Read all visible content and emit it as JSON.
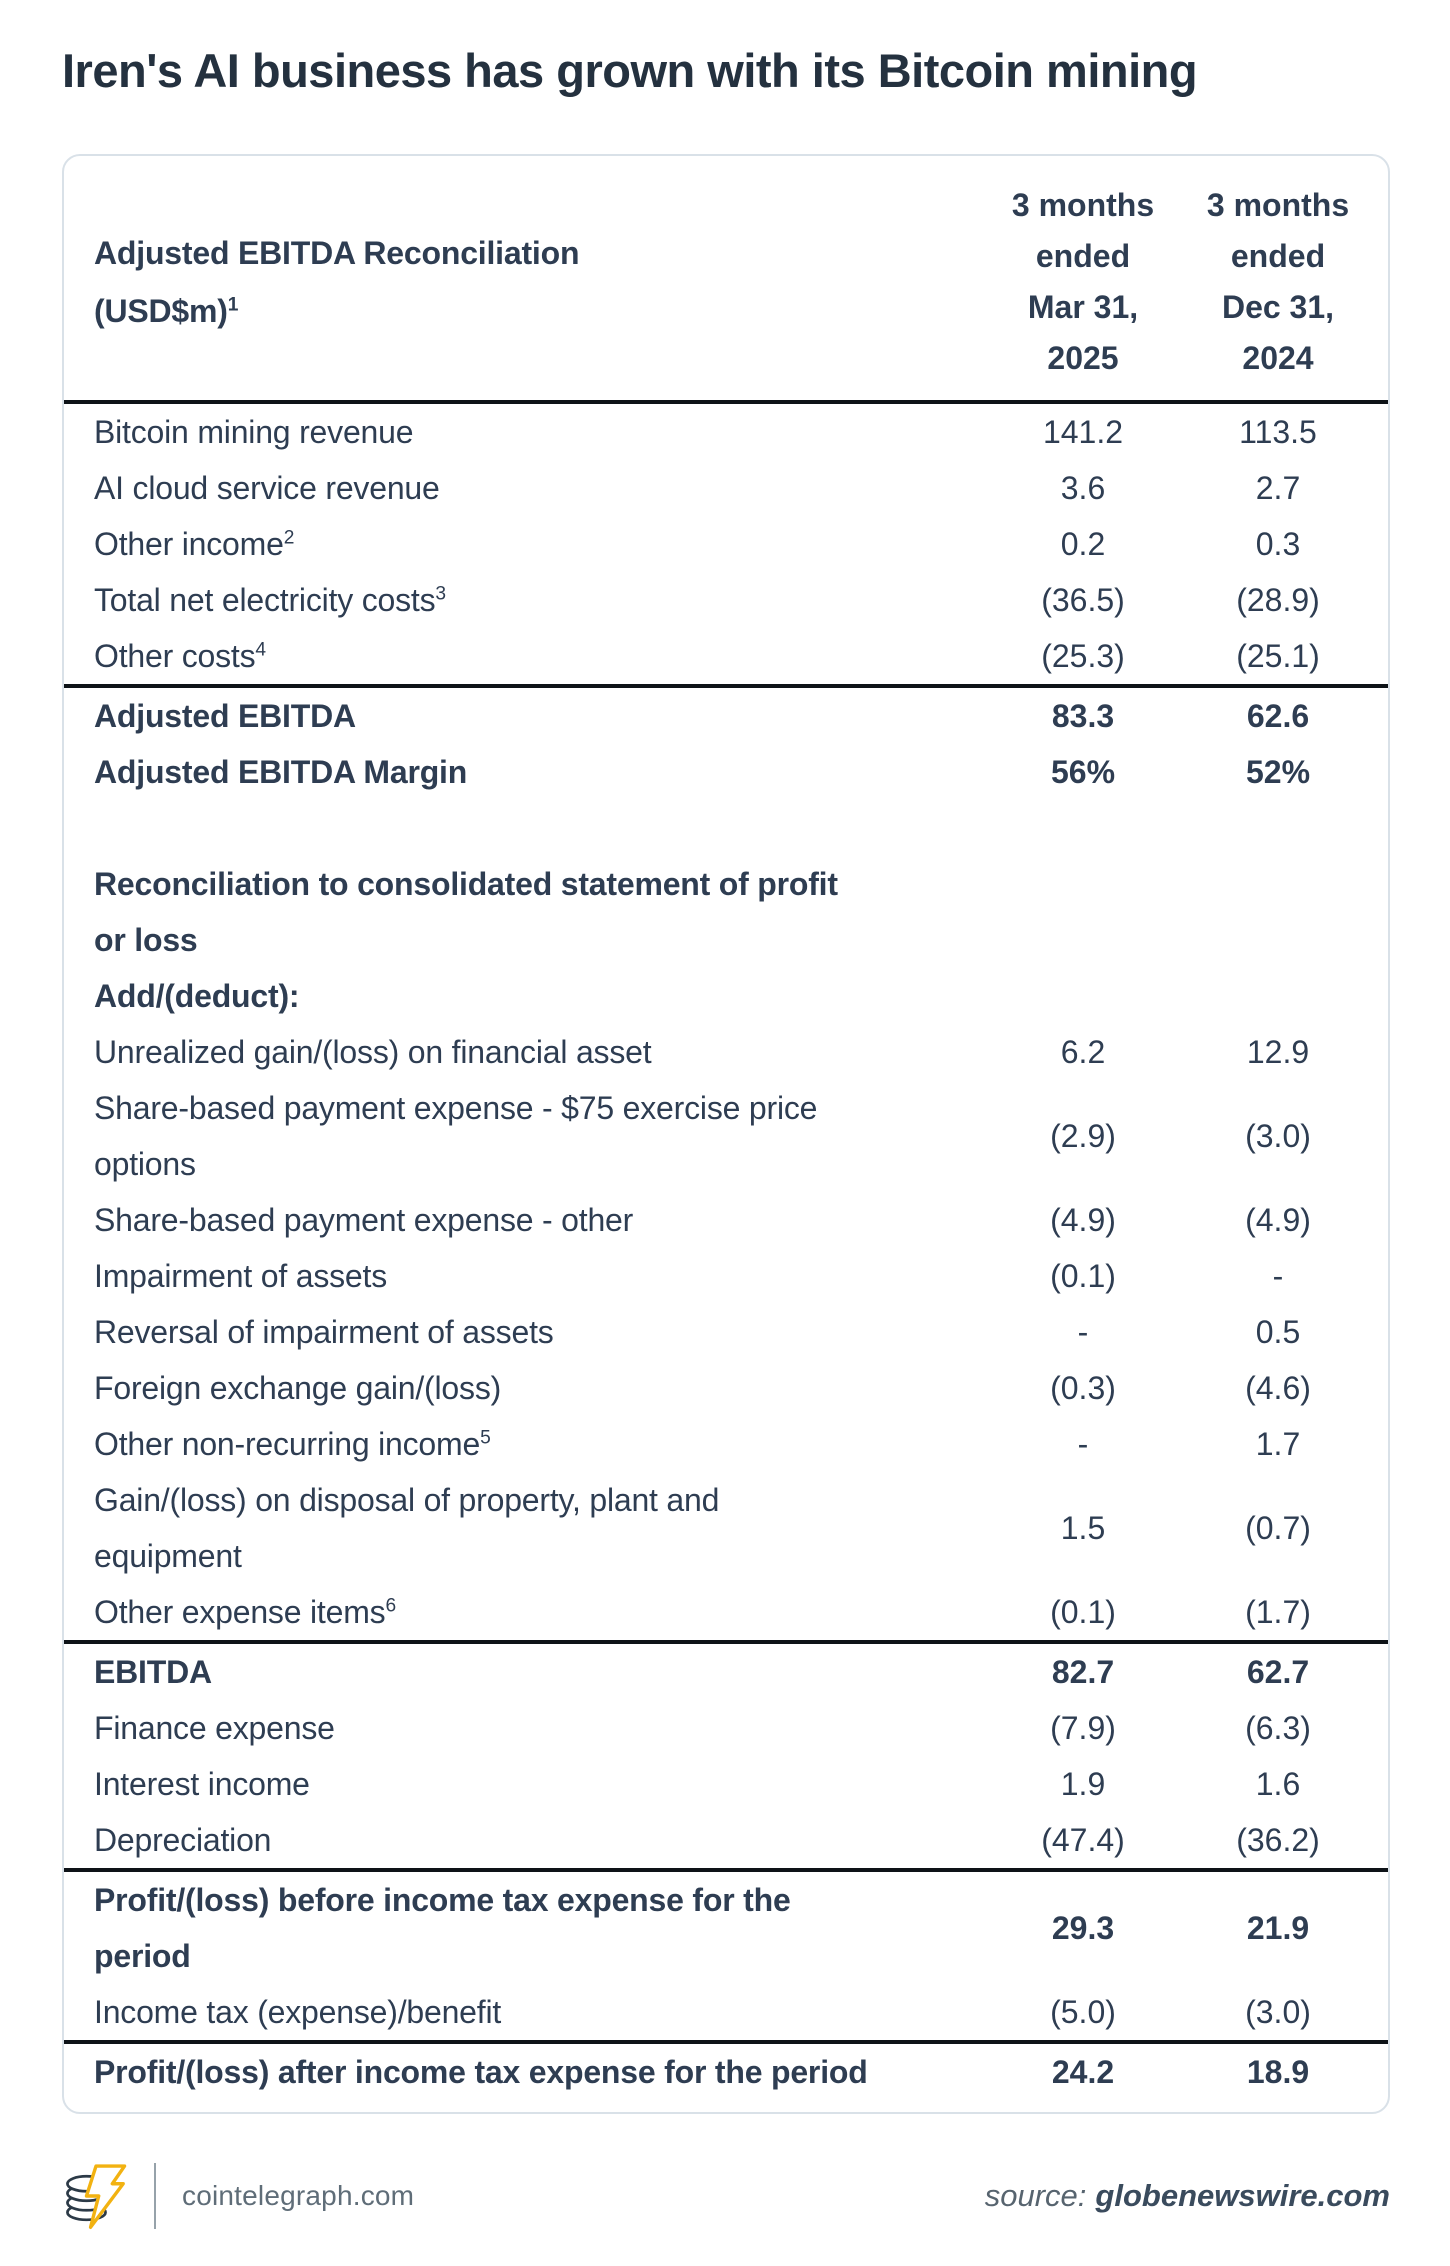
{
  "title": "Iren's AI business has grown with its Bitcoin mining",
  "table": {
    "header": {
      "label": "Adjusted EBITDA Reconciliation\n(USD$m)",
      "label_sup": "1",
      "col_mar": "3 months\nended\nMar 31,\n2025",
      "col_dec": "3 months\nended\nDec 31,\n2024"
    },
    "rows": [
      {
        "label": "Bitcoin mining revenue",
        "mar": "141.2",
        "dec": "113.5"
      },
      {
        "label": "AI cloud service revenue",
        "mar": "3.6",
        "dec": "2.7"
      },
      {
        "label": "Other income",
        "sup": "2",
        "mar": "0.2",
        "dec": "0.3"
      },
      {
        "label": "Total net electricity costs",
        "sup": "3",
        "mar": "(36.5)",
        "dec": "(28.9)"
      },
      {
        "label": "Other costs",
        "sup": "4",
        "mar": "(25.3)",
        "dec": "(25.1)"
      },
      {
        "label": "Adjusted EBITDA",
        "bold": true,
        "rule_above": true,
        "mar": "83.3",
        "dec": "62.6"
      },
      {
        "label": "Adjusted EBITDA Margin",
        "bold": true,
        "mar": "56%",
        "dec": "52%"
      },
      {
        "spacer": true
      },
      {
        "label": "Reconciliation to consolidated statement of profit\nor loss",
        "bold": true,
        "mar": "",
        "dec": ""
      },
      {
        "label": "Add/(deduct):",
        "bold": true,
        "mar": "",
        "dec": ""
      },
      {
        "label": "Unrealized gain/(loss) on financial asset",
        "mar": "6.2",
        "dec": "12.9"
      },
      {
        "label": "Share-based payment expense - $75 exercise price\noptions",
        "mar": "(2.9)",
        "dec": "(3.0)"
      },
      {
        "label": "Share-based payment expense - other",
        "mar": "(4.9)",
        "dec": "(4.9)"
      },
      {
        "label": "Impairment of assets",
        "mar": "(0.1)",
        "dec": "-"
      },
      {
        "label": "Reversal of impairment of assets",
        "mar": "-",
        "dec": "0.5"
      },
      {
        "label": "Foreign exchange gain/(loss)",
        "mar": "(0.3)",
        "dec": "(4.6)"
      },
      {
        "label": "Other non-recurring income",
        "sup": "5",
        "mar": "-",
        "dec": "1.7"
      },
      {
        "label": "Gain/(loss) on disposal of property, plant and\nequipment",
        "mar": "1.5",
        "dec": "(0.7)"
      },
      {
        "label": "Other expense items",
        "sup": "6",
        "mar": "(0.1)",
        "dec": "(1.7)"
      },
      {
        "label": "EBITDA",
        "bold": true,
        "rule_above": true,
        "mar": "82.7",
        "dec": "62.7"
      },
      {
        "label": "Finance expense",
        "mar": "(7.9)",
        "dec": "(6.3)"
      },
      {
        "label": "Interest income",
        "mar": "1.9",
        "dec": "1.6"
      },
      {
        "label": "Depreciation",
        "mar": "(47.4)",
        "dec": "(36.2)"
      },
      {
        "label": "Profit/(loss) before income tax expense for the\nperiod",
        "bold": true,
        "rule_above": true,
        "mar": "29.3",
        "dec": "21.9"
      },
      {
        "label": "Income tax (expense)/benefit",
        "mar": "(5.0)",
        "dec": "(3.0)"
      },
      {
        "label": "Profit/(loss) after income tax expense for the period",
        "bold": true,
        "rule_above": true,
        "mar": "24.2",
        "dec": "18.9"
      }
    ]
  },
  "footer": {
    "brand": "cointelegraph.com",
    "source_label": "source:",
    "source_value": "globenewswire.com",
    "logo_icon": "cointelegraph-coin-stack-lightning-logo"
  },
  "colors": {
    "text": "#2e3d52",
    "title": "#24313f",
    "rule": "#0e1318",
    "card_border": "#d9e1e8",
    "logo_yellow": "#f2b211",
    "footer_gray": "#5f6d78"
  },
  "chart_data": {
    "type": "table",
    "title": "Iren's AI business has grown with its Bitcoin mining",
    "columns": [
      "Adjusted EBITDA Reconciliation (USD$m)¹",
      "3 months ended Mar 31, 2025",
      "3 months ended Dec 31, 2024"
    ],
    "rows": [
      [
        "Bitcoin mining revenue",
        "141.2",
        "113.5"
      ],
      [
        "AI cloud service revenue",
        "3.6",
        "2.7"
      ],
      [
        "Other income²",
        "0.2",
        "0.3"
      ],
      [
        "Total net electricity costs³",
        "(36.5)",
        "(28.9)"
      ],
      [
        "Other costs⁴",
        "(25.3)",
        "(25.1)"
      ],
      [
        "Adjusted EBITDA",
        "83.3",
        "62.6"
      ],
      [
        "Adjusted EBITDA Margin",
        "56%",
        "52%"
      ],
      [
        "Reconciliation to consolidated statement of profit or loss",
        "",
        ""
      ],
      [
        "Add/(deduct):",
        "",
        ""
      ],
      [
        "Unrealized gain/(loss) on financial asset",
        "6.2",
        "12.9"
      ],
      [
        "Share-based payment expense - $75 exercise price options",
        "(2.9)",
        "(3.0)"
      ],
      [
        "Share-based payment expense - other",
        "(4.9)",
        "(4.9)"
      ],
      [
        "Impairment of assets",
        "(0.1)",
        "-"
      ],
      [
        "Reversal of impairment of assets",
        "-",
        "0.5"
      ],
      [
        "Foreign exchange gain/(loss)",
        "(0.3)",
        "(4.6)"
      ],
      [
        "Other non-recurring income⁵",
        "-",
        "1.7"
      ],
      [
        "Gain/(loss) on disposal of property, plant and equipment",
        "1.5",
        "(0.7)"
      ],
      [
        "Other expense items⁶",
        "(0.1)",
        "(1.7)"
      ],
      [
        "EBITDA",
        "82.7",
        "62.7"
      ],
      [
        "Finance expense",
        "(7.9)",
        "(6.3)"
      ],
      [
        "Interest income",
        "1.9",
        "1.6"
      ],
      [
        "Depreciation",
        "(47.4)",
        "(36.2)"
      ],
      [
        "Profit/(loss) before income tax expense for the period",
        "29.3",
        "21.9"
      ],
      [
        "Income tax (expense)/benefit",
        "(5.0)",
        "(3.0)"
      ],
      [
        "Profit/(loss) after income tax expense for the period",
        "24.2",
        "18.9"
      ]
    ],
    "source": "globenewswire.com",
    "layout_hints": {
      "section_dividers_above": [
        "Adjusted EBITDA",
        "EBITDA",
        "Profit/(loss) before income tax expense for the period",
        "Profit/(loss) after income tax expense for the period"
      ],
      "value_columns_alignment": "center",
      "negative_notation": "parentheses"
    }
  }
}
